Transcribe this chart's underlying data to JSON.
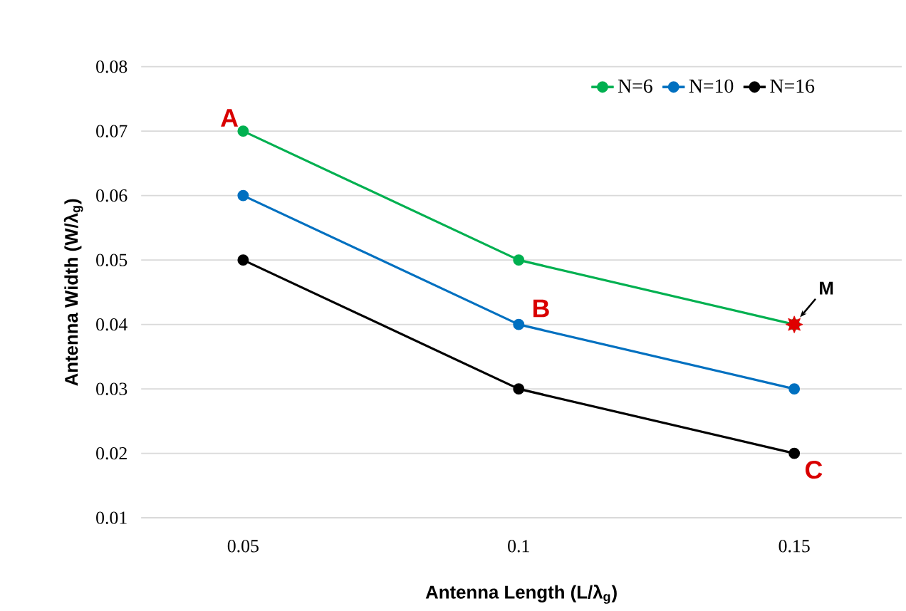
{
  "chart_data": {
    "type": "line",
    "xlabel": "Antenna Length (L/λ$_{g}$)",
    "ylabel": "Antenna Width (W/λ$_{g}$)",
    "categories": [
      "0.05",
      "0.1",
      "0.15"
    ],
    "series": [
      {
        "name": "N=6",
        "color": "#00b050",
        "values": [
          0.07,
          0.05,
          0.04
        ]
      },
      {
        "name": "N=10",
        "color": "#0070c0",
        "values": [
          0.06,
          0.04,
          0.03
        ]
      },
      {
        "name": "N=16",
        "color": "#000000",
        "values": [
          0.05,
          0.03,
          0.02
        ]
      },
      {
        "type": "scatter",
        "marker": "star",
        "color": "#e00000",
        "x": [
          "0.15"
        ],
        "values": [
          0.04
        ]
      }
    ],
    "ylim": [
      0.01,
      0.08
    ],
    "yticks": [
      0.01,
      0.02,
      0.03,
      0.04,
      0.05,
      0.06,
      0.07,
      0.08
    ],
    "grid": "y",
    "legend": "top right",
    "marker": "circle",
    "line_style": "solid",
    "annotations": [
      {
        "text": "A",
        "x": "0.05",
        "y": 0.07
      },
      {
        "text": "B",
        "x": "0.1",
        "y": 0.04
      },
      {
        "text": "C",
        "x": "0.15",
        "y": 0.02
      },
      {
        "text": "M",
        "x": "0.15",
        "y": 0.04
      }
    ]
  }
}
